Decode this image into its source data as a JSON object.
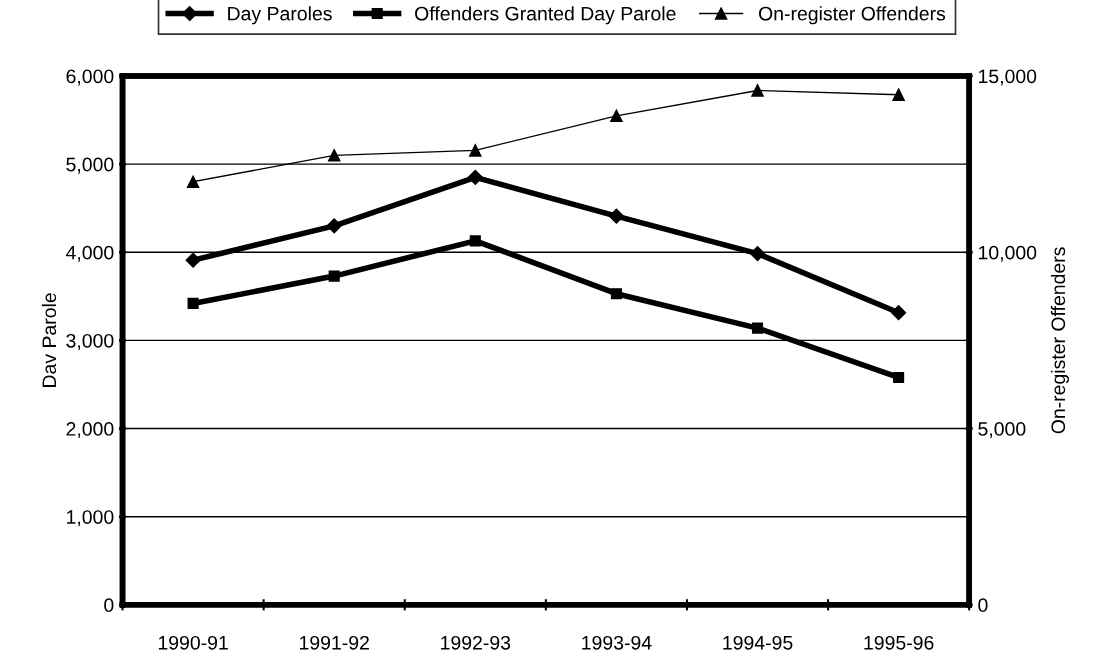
{
  "chart_data": {
    "type": "line",
    "ylabel": "Dav Parole",
    "y2label": "On-register Offenders",
    "categories": [
      "1990-91",
      "1991-92",
      "1992-93",
      "1993-94",
      "1994-95",
      "1995-96"
    ],
    "series": [
      {
        "name": "Day Paroles",
        "color": "#000000",
        "marker": "diamond",
        "values": [
          3910,
          4300,
          4850,
          4410,
          3985,
          3315
        ]
      },
      {
        "name": "Offenders Granted Day Parole",
        "color": "#000000",
        "marker": "square",
        "values": [
          3420,
          3730,
          4130,
          3530,
          3140,
          2580
        ]
      },
      {
        "name": "On-register Offenders",
        "color": "#000000",
        "marker": "triangle",
        "axis": "y2",
        "values": [
          12000,
          12750,
          12890,
          13870,
          14590,
          14470
        ]
      }
    ],
    "ylim": [
      0,
      6000
    ],
    "yticks": [
      0,
      {
        "value": 1000,
        "label": "1,000"
      },
      {
        "value": 2000,
        "label": "2,000"
      },
      {
        "value": 3000,
        "label": "3,000"
      },
      {
        "value": 4000,
        "label": "4,000"
      },
      {
        "value": 5000,
        "label": "5,000"
      },
      {
        "value": 6000,
        "label": "6,000"
      }
    ],
    "y2lim": [
      0,
      15000
    ],
    "y2ticks": [
      0,
      {
        "value": 5000,
        "label": "5,000"
      },
      {
        "value": 10000,
        "label": "10,000"
      },
      {
        "value": 15000,
        "label": "15,000"
      }
    ],
    "grid": "y",
    "legend": "top",
    "line_style": "solid"
  }
}
